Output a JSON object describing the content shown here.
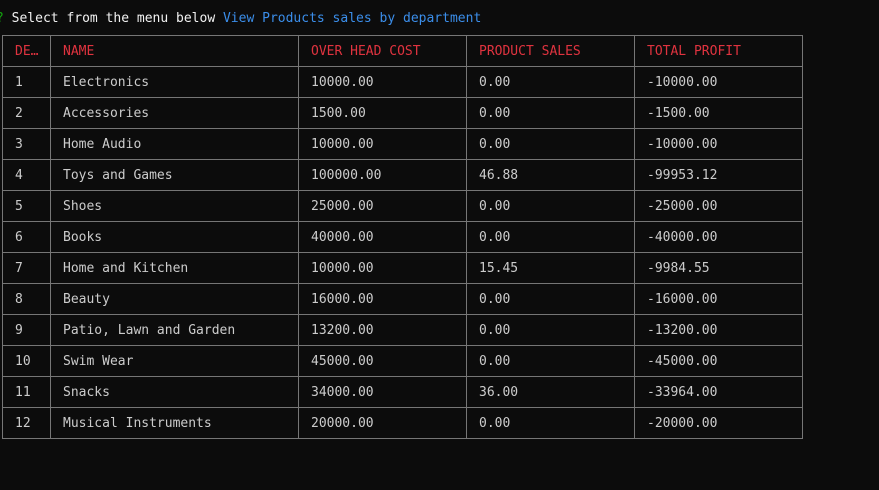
{
  "prompt": {
    "marker": "?",
    "text": "Select from the menu below",
    "answer": "View Products sales by department"
  },
  "table": {
    "headers": [
      "DE…",
      "NAME",
      "OVER HEAD COST",
      "PRODUCT SALES",
      "TOTAL PROFIT"
    ],
    "rows": [
      [
        "1",
        "Electronics",
        "10000.00",
        "0.00",
        "-10000.00"
      ],
      [
        "2",
        "Accessories",
        "1500.00",
        "0.00",
        "-1500.00"
      ],
      [
        "3",
        "Home Audio",
        "10000.00",
        "0.00",
        "-10000.00"
      ],
      [
        "4",
        "Toys and Games",
        "100000.00",
        "46.88",
        "-99953.12"
      ],
      [
        "5",
        "Shoes",
        "25000.00",
        "0.00",
        "-25000.00"
      ],
      [
        "6",
        "Books",
        "40000.00",
        "0.00",
        "-40000.00"
      ],
      [
        "7",
        "Home and Kitchen",
        "10000.00",
        "15.45",
        "-9984.55"
      ],
      [
        "8",
        "Beauty",
        "16000.00",
        "0.00",
        "-16000.00"
      ],
      [
        "9",
        "Patio, Lawn and Garden",
        "13200.00",
        "0.00",
        "-13200.00"
      ],
      [
        "10",
        "Swim Wear",
        "45000.00",
        "0.00",
        "-45000.00"
      ],
      [
        "11",
        "Snacks",
        "34000.00",
        "36.00",
        "-33964.00"
      ],
      [
        "12",
        "Musical Instruments",
        "20000.00",
        "0.00",
        "-20000.00"
      ]
    ]
  },
  "colors": {
    "background": "#0c0c0c",
    "text": "#cccccc",
    "header": "#e0333f",
    "prompt_marker": "#13a10e",
    "prompt_answer": "#3b8eea",
    "border": "#767676"
  }
}
